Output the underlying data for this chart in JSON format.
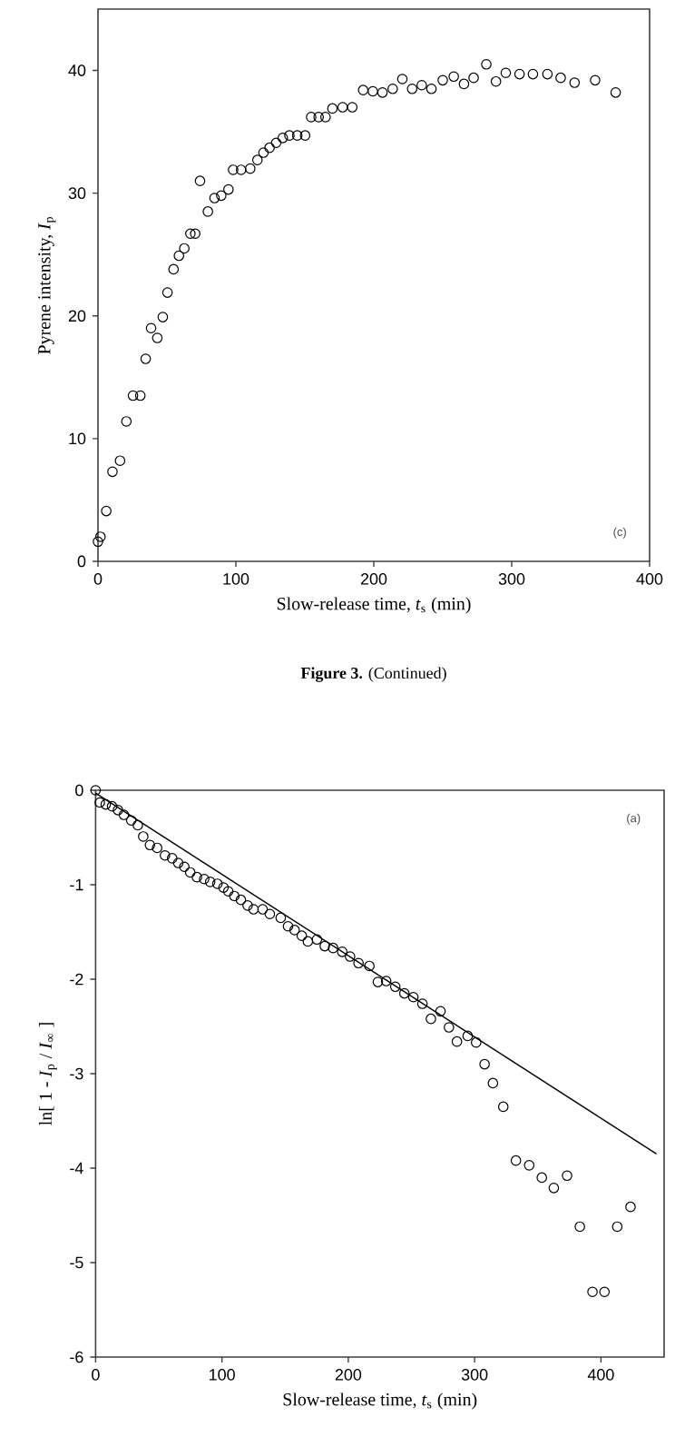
{
  "chart_data": [
    {
      "type": "scatter",
      "xlabel": "Slow-release time, *t*$_{s}$ (min)",
      "ylabel": "Pyrene intensity, *I*$_{p}$",
      "xlim": [
        0,
        400
      ],
      "ylim": [
        0,
        45
      ],
      "xticks": [
        0,
        100,
        200,
        300,
        400
      ],
      "yticks": [
        0,
        10,
        20,
        30,
        40
      ],
      "marker": "circle",
      "annotations": [
        "(c)",
        "**Figure 3.** (Continued)"
      ],
      "series": [
        {
          "color": "#000000",
          "x": [
            0,
            1.8,
            6,
            10.5,
            16,
            20.6,
            25.4,
            30.7,
            34.6,
            38.5,
            43,
            47,
            50.4,
            54.8,
            58.7,
            62.6,
            67,
            70.5,
            74,
            79.7,
            84.5,
            89.4,
            94.6,
            98,
            103.8,
            110.4,
            115.6,
            120,
            124.4,
            129.2,
            134,
            138.8,
            144.5,
            150.2,
            154.6,
            160,
            165,
            170,
            177.4,
            184.4,
            192.3,
            199.3,
            206.3,
            213.7,
            220.7,
            227.8,
            234.8,
            241.8,
            250,
            258,
            265.4,
            272.4,
            281.6,
            288.6,
            295.7,
            305.7,
            315.4,
            325.9,
            335.5,
            345.6,
            360.5,
            375.4
          ],
          "values": [
            1.6,
            2.0,
            4.1,
            7.3,
            8.2,
            11.4,
            13.5,
            13.5,
            16.5,
            19.0,
            18.2,
            19.9,
            21.9,
            23.8,
            24.9,
            25.5,
            26.7,
            26.7,
            31.0,
            28.5,
            29.6,
            29.8,
            30.3,
            31.9,
            31.9,
            32.0,
            32.7,
            33.3,
            33.7,
            34.1,
            34.5,
            34.7,
            34.7,
            34.7,
            36.2,
            36.2,
            36.2,
            36.9,
            37.0,
            37.0,
            38.4,
            38.3,
            38.2,
            38.5,
            39.3,
            38.5,
            38.8,
            38.5,
            39.2,
            39.5,
            38.9,
            39.4,
            40.5,
            39.1,
            39.8,
            39.7,
            39.7,
            39.7,
            39.4,
            39.0,
            39.2,
            38.2
          ]
        }
      ]
    },
    {
      "type": "scatter",
      "xlabel": "Slow-release time, *t*$_{s}$ (min)",
      "ylabel": "ln[ 1 - *I*$_{p}$ / *I*$_{∞}$ ]",
      "xlim": [
        0,
        450
      ],
      "ylim": [
        -6,
        0
      ],
      "xticks": [
        0,
        100,
        200,
        300,
        400
      ],
      "yticks": [
        -6,
        -5,
        -4,
        -3,
        -2,
        -1,
        0
      ],
      "marker": "circle",
      "annotations": [
        "(a)"
      ],
      "series": [
        {
          "color": "#000000",
          "x": [
            0,
            3.3,
            8,
            13,
            17.7,
            22.4,
            28.2,
            33.4,
            37.7,
            43,
            48.7,
            54.9,
            60.6,
            65.4,
            70.2,
            74.9,
            80.2,
            85.9,
            90.7,
            96.4,
            101.2,
            105,
            109.8,
            115,
            120.3,
            125,
            132.2,
            137.9,
            146.5,
            152.3,
            157.5,
            163.2,
            168,
            175.2,
            181.4,
            188,
            195.2,
            201.4,
            208.1,
            216.7,
            223.4,
            230,
            237.2,
            244.4,
            251.5,
            258.7,
            265.4,
            273,
            279.7,
            286,
            294.5,
            301.2,
            307.9,
            314.5,
            322.7,
            332.7,
            343.2,
            353.2,
            362.7,
            373.2,
            383.3,
            393.3,
            402.8,
            412.9,
            423.4
          ],
          "values": [
            0,
            -0.13,
            -0.15,
            -0.17,
            -0.21,
            -0.26,
            -0.32,
            -0.37,
            -0.49,
            -0.58,
            -0.61,
            -0.69,
            -0.72,
            -0.77,
            -0.81,
            -0.87,
            -0.92,
            -0.94,
            -0.97,
            -0.99,
            -1.03,
            -1.07,
            -1.12,
            -1.16,
            -1.22,
            -1.26,
            -1.26,
            -1.31,
            -1.35,
            -1.44,
            -1.48,
            -1.54,
            -1.6,
            -1.58,
            -1.65,
            -1.67,
            -1.71,
            -1.76,
            -1.83,
            -1.86,
            -2.03,
            -2.02,
            -2.08,
            -2.15,
            -2.19,
            -2.26,
            -2.42,
            -2.34,
            -2.51,
            -2.66,
            -2.6,
            -2.67,
            -2.9,
            -3.1,
            -3.35,
            -3.92,
            -3.97,
            -4.1,
            -4.21,
            -4.08,
            -4.62,
            -5.31,
            -5.31,
            -4.62,
            -4.41
          ]
        },
        {
          "type": "line",
          "color": "#000000",
          "marker": "none",
          "x": [
            0,
            444
          ],
          "values": [
            -0.03,
            -3.85
          ]
        }
      ]
    }
  ]
}
